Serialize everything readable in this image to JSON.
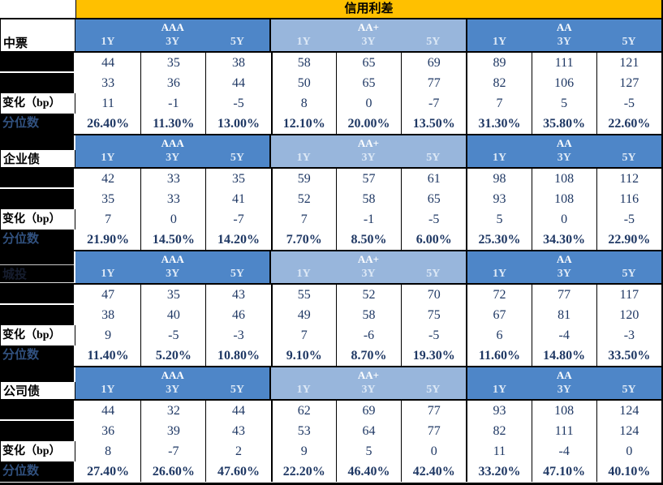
{
  "title": "信用利差",
  "colors": {
    "title_bg": "#FFC000",
    "header_blue": "#4E86C8",
    "header_light_blue": "#98B6DC",
    "value_text": "#1F3864",
    "redacted_cell": "#000000"
  },
  "ratings": [
    "AAA",
    "AA+",
    "AA"
  ],
  "tenors": [
    "1Y",
    "3Y",
    "5Y"
  ],
  "row_labels": {
    "row1": "",
    "row2": "",
    "change": "变化（bp）",
    "percentile": "分位数"
  },
  "sections": [
    {
      "name": "中票",
      "variant": "full",
      "rows": {
        "row1": [
          44,
          35,
          38,
          58,
          65,
          69,
          89,
          111,
          121
        ],
        "row2": [
          33,
          36,
          44,
          50,
          65,
          77,
          82,
          106,
          127
        ],
        "change": [
          11,
          -1,
          -5,
          8,
          0,
          -7,
          7,
          5,
          -5
        ],
        "percentile": [
          "26.40%",
          "11.30%",
          "13.00%",
          "12.10%",
          "20.00%",
          "13.50%",
          "31.30%",
          "35.80%",
          "22.60%"
        ]
      }
    },
    {
      "name": "企业债",
      "variant": "half",
      "rows": {
        "row1": [
          42,
          33,
          35,
          59,
          57,
          61,
          98,
          108,
          112
        ],
        "row2": [
          35,
          33,
          41,
          52,
          58,
          65,
          93,
          108,
          116
        ],
        "change": [
          7,
          0,
          -7,
          7,
          -1,
          -5,
          5,
          0,
          -5
        ],
        "percentile": [
          "21.90%",
          "14.50%",
          "14.20%",
          "7.70%",
          "8.50%",
          "6.00%",
          "25.30%",
          "34.30%",
          "22.90%"
        ]
      }
    },
    {
      "name": "城投",
      "variant": "dark",
      "rows": {
        "row1": [
          47,
          35,
          43,
          55,
          52,
          70,
          72,
          77,
          117
        ],
        "row2": [
          38,
          40,
          46,
          49,
          58,
          75,
          67,
          81,
          120
        ],
        "change": [
          9,
          -5,
          -3,
          7,
          -6,
          -5,
          6,
          -4,
          -3
        ],
        "percentile": [
          "11.40%",
          "5.20%",
          "10.80%",
          "9.10%",
          "8.70%",
          "19.30%",
          "11.60%",
          "14.80%",
          "33.50%"
        ]
      }
    },
    {
      "name": "公司债",
      "variant": "half",
      "rows": {
        "row1": [
          44,
          32,
          44,
          62,
          69,
          77,
          93,
          108,
          124
        ],
        "row2": [
          36,
          39,
          43,
          53,
          64,
          77,
          82,
          111,
          124
        ],
        "change": [
          8,
          -7,
          2,
          9,
          5,
          0,
          11,
          -4,
          0
        ],
        "percentile": [
          "27.40%",
          "26.60%",
          "47.60%",
          "22.20%",
          "46.40%",
          "42.40%",
          "33.20%",
          "47.10%",
          "40.10%"
        ]
      }
    }
  ]
}
